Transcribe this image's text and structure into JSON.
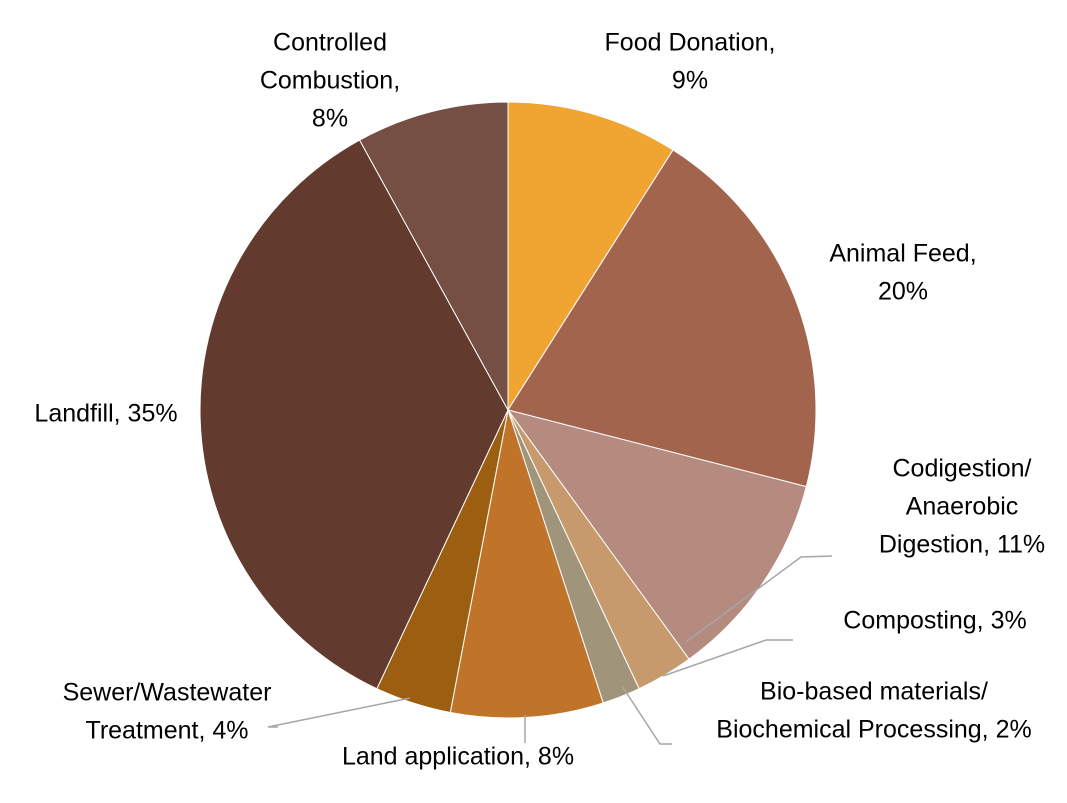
{
  "chart_data": {
    "type": "pie",
    "title": "",
    "start_angle_deg": 0,
    "direction": "clockwise",
    "slices": [
      {
        "label_lines": [
          "Food Donation,",
          "9%"
        ],
        "category": "Food Donation",
        "value": 9,
        "color": "#F0A431"
      },
      {
        "label_lines": [
          "Animal Feed,",
          "20%"
        ],
        "category": "Animal Feed",
        "value": 20,
        "color": "#A3644E"
      },
      {
        "label_lines": [
          "Codigestion/",
          "Anaerobic",
          "Digestion, 11%"
        ],
        "category": "Codigestion/Anaerobic Digestion",
        "value": 11,
        "color": "#B58A7F"
      },
      {
        "label_lines": [
          "Composting, 3%"
        ],
        "category": "Composting",
        "value": 3,
        "color": "#C69A6D"
      },
      {
        "label_lines": [
          "Bio-based materials/",
          "Biochemical Processing, 2%"
        ],
        "category": "Bio-based materials/Biochemical Processing",
        "value": 2,
        "color": "#A0957A"
      },
      {
        "label_lines": [
          "Land application, 8%"
        ],
        "category": "Land application",
        "value": 8,
        "color": "#C0742A"
      },
      {
        "label_lines": [
          "Sewer/Wastewater",
          "Treatment, 4%"
        ],
        "category": "Sewer/Wastewater Treatment",
        "value": 4,
        "color": "#9C5F11"
      },
      {
        "label_lines": [
          "Landfill, 35%"
        ],
        "category": "Landfill",
        "value": 35,
        "color": "#633A2E"
      },
      {
        "label_lines": [
          "Controlled",
          "Combustion,",
          "8%"
        ],
        "category": "Controlled Combustion",
        "value": 8,
        "color": "#754F43"
      }
    ]
  }
}
